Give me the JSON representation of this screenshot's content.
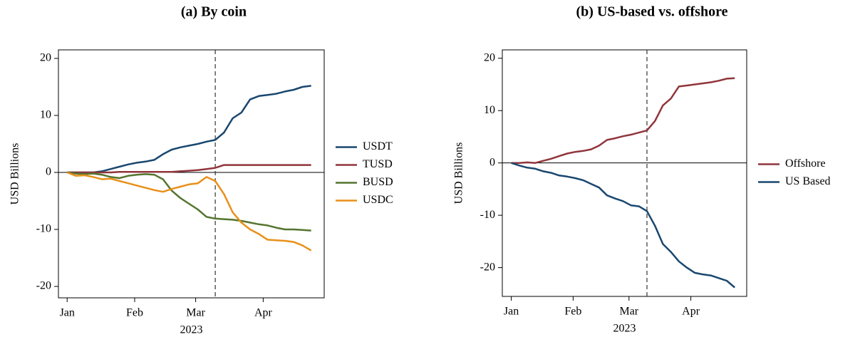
{
  "chart_data": [
    {
      "type": "line",
      "title": "(a) By coin",
      "xlabel": "2023",
      "ylabel": "USD Billions",
      "x": [
        0,
        4,
        8,
        12,
        16,
        20,
        24,
        28,
        32,
        36,
        40,
        44,
        48,
        52,
        56,
        60,
        64,
        68,
        72,
        76,
        80,
        84,
        88,
        92,
        96,
        100,
        104,
        108,
        112
      ],
      "xlim": [
        -4,
        118
      ],
      "xticks": [
        {
          "value": 0,
          "label": "Jan"
        },
        {
          "value": 31,
          "label": "Feb"
        },
        {
          "value": 59,
          "label": "Mar"
        },
        {
          "value": 90,
          "label": "Apr"
        }
      ],
      "ylim": [
        -22,
        21.5
      ],
      "yticks": [
        -20,
        -10,
        0,
        10,
        20
      ],
      "yline": 0,
      "vline": 68,
      "legend": "right",
      "series": [
        {
          "name": "USDT",
          "color": "#1a476f",
          "values": [
            0,
            0,
            0,
            0,
            0.2,
            0.6,
            1,
            1.4,
            1.7,
            1.9,
            2.2,
            3.2,
            4,
            4.4,
            4.7,
            5,
            5.4,
            5.7,
            7,
            9.5,
            10.5,
            12.8,
            13.4,
            13.6,
            13.8,
            14.2,
            14.5,
            15,
            15.2
          ]
        },
        {
          "name": "TUSD",
          "color": "#90353b",
          "values": [
            0,
            0,
            0,
            0,
            0,
            0,
            0.1,
            0.1,
            0.1,
            0.1,
            0.1,
            0.1,
            0.1,
            0.2,
            0.3,
            0.4,
            0.6,
            0.8,
            1.3,
            1.3,
            1.3,
            1.3,
            1.3,
            1.3,
            1.3,
            1.3,
            1.3,
            1.3,
            1.3
          ]
        },
        {
          "name": "BUSD",
          "color": "#55752f",
          "values": [
            0,
            -0.2,
            -0.3,
            -0.2,
            -0.4,
            -0.8,
            -1,
            -0.6,
            -0.4,
            -0.3,
            -0.4,
            -1.2,
            -3.2,
            -4.5,
            -5.5,
            -6.5,
            -7.8,
            -8.1,
            -8.2,
            -8.3,
            -8.5,
            -8.8,
            -9.1,
            -9.3,
            -9.7,
            -10,
            -10,
            -10.1,
            -10.2
          ]
        },
        {
          "name": "USDC",
          "color": "#e8901a",
          "values": [
            0,
            -0.6,
            -0.5,
            -0.8,
            -1.2,
            -1.1,
            -1.5,
            -1.9,
            -2.3,
            -2.7,
            -3.1,
            -3.4,
            -2.9,
            -2.5,
            -2.1,
            -1.9,
            -0.8,
            -1.5,
            -3.8,
            -7,
            -8.8,
            -10,
            -10.8,
            -11.8,
            -11.9,
            -12,
            -12.2,
            -12.8,
            -13.7
          ]
        }
      ]
    },
    {
      "type": "line",
      "title": "(b) US-based vs. offshore",
      "xlabel": "2023",
      "ylabel": "USD Billions",
      "x": [
        0,
        4,
        8,
        12,
        16,
        20,
        24,
        28,
        32,
        36,
        40,
        44,
        48,
        52,
        56,
        60,
        64,
        68,
        72,
        76,
        80,
        84,
        88,
        92,
        96,
        100,
        104,
        108,
        112
      ],
      "xlim": [
        -4.5,
        118
      ],
      "xticks": [
        {
          "value": 0,
          "label": "Jan"
        },
        {
          "value": 31,
          "label": "Feb"
        },
        {
          "value": 59,
          "label": "Mar"
        },
        {
          "value": 90,
          "label": "Apr"
        }
      ],
      "ylim": [
        -25.5,
        21.6
      ],
      "yticks": [
        -20,
        -10,
        0,
        10,
        20
      ],
      "yline": 0,
      "vline": 68,
      "legend": "right",
      "series": [
        {
          "name": "Offshore",
          "color": "#90353b",
          "values": [
            0,
            0,
            0.1,
            0,
            0.4,
            0.8,
            1.3,
            1.8,
            2.1,
            2.3,
            2.6,
            3.3,
            4.4,
            4.7,
            5.1,
            5.4,
            5.8,
            6.2,
            8,
            11,
            12.3,
            14.6,
            14.8,
            15,
            15.2,
            15.4,
            15.7,
            16.1,
            16.2
          ]
        },
        {
          "name": "US Based",
          "color": "#1a476f",
          "values": [
            0,
            -0.5,
            -0.9,
            -1.1,
            -1.6,
            -1.9,
            -2.4,
            -2.6,
            -2.9,
            -3.3,
            -4,
            -4.7,
            -6.2,
            -6.8,
            -7.3,
            -8.1,
            -8.3,
            -9.2,
            -12,
            -15.5,
            -17,
            -18.8,
            -20,
            -21,
            -21.3,
            -21.5,
            -22,
            -22.5,
            -23.8
          ]
        }
      ]
    }
  ]
}
